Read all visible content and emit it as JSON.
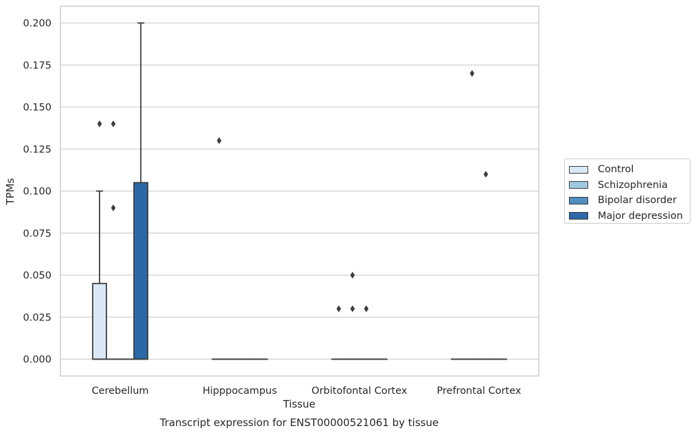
{
  "chart_data": {
    "type": "box",
    "title": "Transcript expression for ENST00000521061 by tissue",
    "xlabel": "Tissue",
    "ylabel": "TPMs",
    "ylim": [
      -0.01,
      0.21
    ],
    "yticks": [
      "0.000",
      "0.025",
      "0.050",
      "0.075",
      "0.100",
      "0.125",
      "0.150",
      "0.175",
      "0.200"
    ],
    "grid": true,
    "legend_position": "right",
    "categories": [
      "Cerebellum",
      "Hipppocampus",
      "Orbitofontal Cortex",
      "Prefrontal Cortex"
    ],
    "series": [
      {
        "name": "Control",
        "color": "#dbe9f6",
        "boxes": [
          {
            "q1": 0.0,
            "median": 0.0,
            "q3": 0.045,
            "whislo": 0.0,
            "whishi": 0.1,
            "fliers": [
              0.14
            ]
          },
          {
            "q1": 0.0,
            "median": 0.0,
            "q3": 0.0,
            "whislo": 0.0,
            "whishi": 0.0,
            "fliers": [
              0.13
            ]
          },
          {
            "q1": 0.0,
            "median": 0.0,
            "q3": 0.0,
            "whislo": 0.0,
            "whishi": 0.0,
            "fliers": [
              0.03
            ]
          },
          {
            "q1": 0.0,
            "median": 0.0,
            "q3": 0.0,
            "whislo": 0.0,
            "whishi": 0.0,
            "fliers": []
          }
        ]
      },
      {
        "name": "Schizophrenia",
        "color": "#9ecae1",
        "boxes": [
          {
            "q1": 0.0,
            "median": 0.0,
            "q3": 0.0,
            "whislo": 0.0,
            "whishi": 0.0,
            "fliers": [
              0.14,
              0.09
            ]
          },
          {
            "q1": 0.0,
            "median": 0.0,
            "q3": 0.0,
            "whislo": 0.0,
            "whishi": 0.0,
            "fliers": []
          },
          {
            "q1": 0.0,
            "median": 0.0,
            "q3": 0.0,
            "whislo": 0.0,
            "whishi": 0.0,
            "fliers": [
              0.05,
              0.03
            ]
          },
          {
            "q1": 0.0,
            "median": 0.0,
            "q3": 0.0,
            "whislo": 0.0,
            "whishi": 0.0,
            "fliers": [
              0.17
            ]
          }
        ]
      },
      {
        "name": "Bipolar disorder",
        "color": "#4f8fc1",
        "boxes": [
          {
            "q1": 0.0,
            "median": 0.0,
            "q3": 0.0,
            "whislo": 0.0,
            "whishi": 0.0,
            "fliers": []
          },
          {
            "q1": 0.0,
            "median": 0.0,
            "q3": 0.0,
            "whislo": 0.0,
            "whishi": 0.0,
            "fliers": []
          },
          {
            "q1": 0.0,
            "median": 0.0,
            "q3": 0.0,
            "whislo": 0.0,
            "whishi": 0.0,
            "fliers": [
              0.03
            ]
          },
          {
            "q1": 0.0,
            "median": 0.0,
            "q3": 0.0,
            "whislo": 0.0,
            "whishi": 0.0,
            "fliers": [
              0.11
            ]
          }
        ]
      },
      {
        "name": "Major depression",
        "color": "#2a68a8",
        "boxes": [
          {
            "q1": 0.0,
            "median": 0.0,
            "q3": 0.105,
            "whislo": 0.0,
            "whishi": 0.2,
            "fliers": []
          },
          {
            "q1": 0.0,
            "median": 0.0,
            "q3": 0.0,
            "whislo": 0.0,
            "whishi": 0.0,
            "fliers": []
          },
          {
            "q1": 0.0,
            "median": 0.0,
            "q3": 0.0,
            "whislo": 0.0,
            "whishi": 0.0,
            "fliers": []
          },
          {
            "q1": 0.0,
            "median": 0.0,
            "q3": 0.0,
            "whislo": 0.0,
            "whishi": 0.0,
            "fliers": []
          }
        ]
      }
    ]
  }
}
